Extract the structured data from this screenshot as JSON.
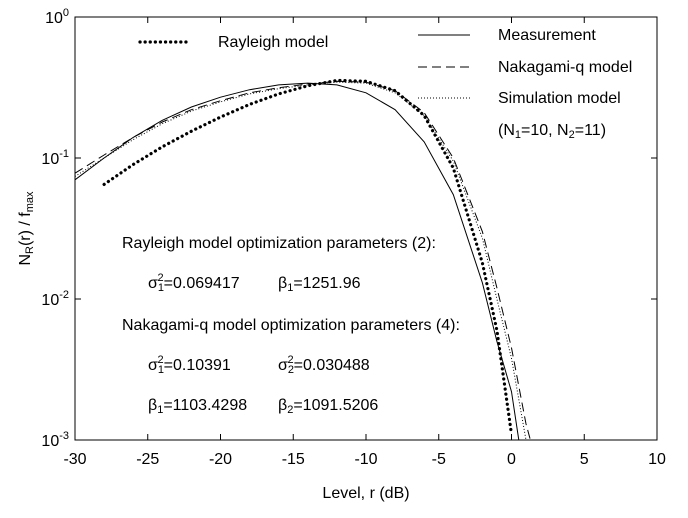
{
  "chart_data": {
    "type": "line",
    "xlabel": "Level, r (dB)",
    "ylabel": "N_{R}(r) / f_{max}",
    "xlim": [
      -30,
      10
    ],
    "xticks": [
      -30,
      -25,
      -20,
      -15,
      -10,
      -5,
      0,
      5,
      10
    ],
    "ylim": [
      0.001,
      1
    ],
    "log_y": true,
    "yticks": [
      {
        "value": 1,
        "label": "10^{0}"
      },
      {
        "value": 0.1,
        "label": "10^{-1}"
      },
      {
        "value": 0.01,
        "label": "10^{-2}"
      },
      {
        "value": 0.001,
        "label": "10^{-3}"
      }
    ],
    "series": [
      {
        "name": "Measurement",
        "color": "#000",
        "style": "solid",
        "x": [
          -30,
          -28,
          -26,
          -24,
          -22,
          -20,
          -18,
          -16,
          -14,
          -12,
          -10,
          -8,
          -6,
          -4,
          -2,
          -1,
          0,
          0.5
        ],
        "values": [
          0.07,
          0.1,
          0.14,
          0.185,
          0.23,
          0.27,
          0.305,
          0.33,
          0.34,
          0.33,
          0.29,
          0.22,
          0.13,
          0.055,
          0.013,
          0.005,
          0.0022,
          0.001
        ]
      },
      {
        "name": "Nakagami-q model",
        "color": "#000",
        "style": "dashed",
        "x": [
          -30,
          -28,
          -26,
          -24,
          -22,
          -20,
          -18,
          -16,
          -14,
          -12,
          -10,
          -8,
          -6,
          -4,
          -2,
          -1,
          0,
          1,
          1.3
        ],
        "values": [
          0.078,
          0.105,
          0.14,
          0.18,
          0.22,
          0.255,
          0.29,
          0.315,
          0.335,
          0.35,
          0.345,
          0.3,
          0.21,
          0.1,
          0.03,
          0.012,
          0.0045,
          0.0013,
          0.001
        ]
      },
      {
        "name": "Simulation model",
        "color": "#000",
        "style": "dotted",
        "x": [
          -30,
          -28,
          -26,
          -24,
          -22,
          -20,
          -18,
          -16,
          -14,
          -12,
          -10,
          -8,
          -6,
          -4,
          -2,
          -1,
          0,
          1
        ],
        "values": [
          0.074,
          0.1,
          0.135,
          0.175,
          0.215,
          0.25,
          0.285,
          0.31,
          0.33,
          0.345,
          0.34,
          0.29,
          0.2,
          0.095,
          0.027,
          0.01,
          0.0038,
          0.001
        ]
      },
      {
        "name": "Rayleigh model",
        "color": "#000",
        "style": "heavy-dotted",
        "x": [
          -28,
          -26,
          -24,
          -22,
          -20,
          -18,
          -16,
          -14,
          -12,
          -10,
          -8,
          -6,
          -4,
          -2,
          -1,
          0
        ],
        "values": [
          0.065,
          0.09,
          0.12,
          0.155,
          0.195,
          0.24,
          0.285,
          0.325,
          0.355,
          0.35,
          0.3,
          0.2,
          0.085,
          0.018,
          0.006,
          0.0011
        ]
      }
    ],
    "legend_note": "(N_{1}=10, N_{2}=11)",
    "annotations": [
      "Rayleigh model optimization parameters (2):",
      "σ_{1}^{2}=0.069417",
      "β_{1}=1251.96",
      "Nakagami-q model optimization parameters (4):",
      "σ_{1}^{2}=0.10391",
      "σ_{2}^{2}=0.030488",
      "β_{1}=1103.4298",
      "β_{2}=1091.5206"
    ]
  }
}
